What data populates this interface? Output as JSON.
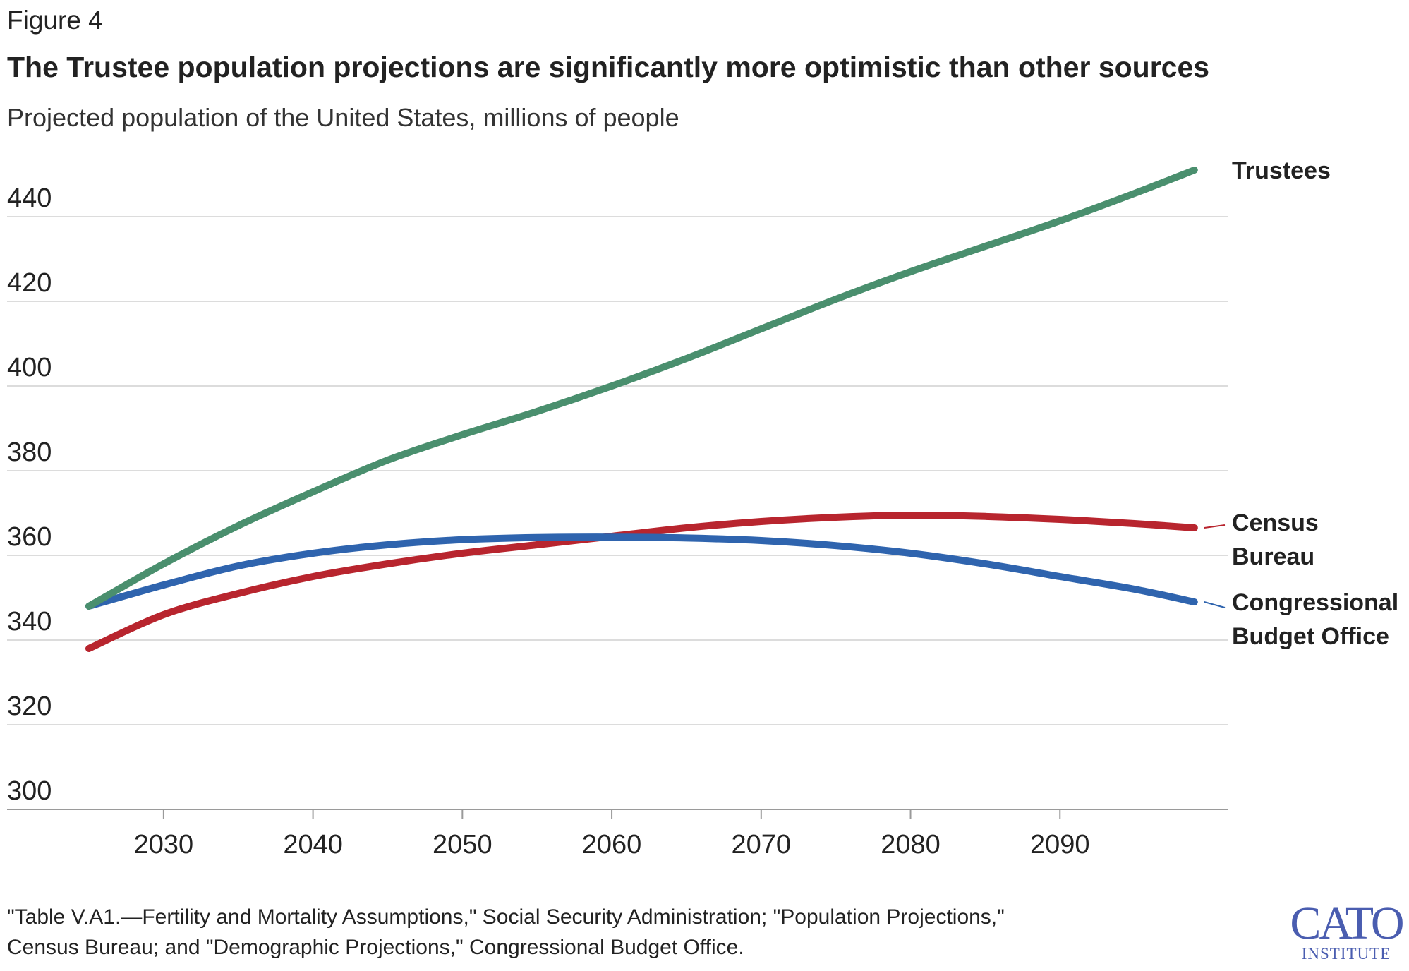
{
  "header": {
    "figure_label": "Figure 4",
    "title": "The Trustee population projections are significantly more optimistic than other sources",
    "subtitle": "Projected population of the United States, millions of people"
  },
  "source": {
    "line1": "\"Table V.A1.—Fertility and Mortality Assumptions,\" Social Security Administration; \"Population Projections,\"",
    "line2": "Census Bureau; and \"Demographic Projections,\" Congressional Budget Office."
  },
  "logo": {
    "top": "CATO",
    "bottom": "INSTITUTE"
  },
  "chart_data": {
    "type": "line",
    "title": "The Trustee population projections are significantly more optimistic than other sources",
    "subtitle": "Projected population of the United States, millions of people",
    "xlabel": "",
    "ylabel": "",
    "xlim": [
      2025,
      2100
    ],
    "ylim": [
      300,
      440
    ],
    "x_ticks": [
      2030,
      2040,
      2050,
      2060,
      2070,
      2080,
      2090
    ],
    "y_ticks": [
      300,
      320,
      340,
      360,
      380,
      400,
      420,
      440
    ],
    "grid": true,
    "legend": "direct labels at right end of lines",
    "series": [
      {
        "name": "Trustees",
        "color": "#4a8f6e",
        "label_lines": [
          "Trustees"
        ],
        "x": [
          2025,
          2030,
          2035,
          2040,
          2045,
          2050,
          2055,
          2060,
          2065,
          2070,
          2075,
          2080,
          2085,
          2090,
          2095,
          2099
        ],
        "y": [
          348,
          358,
          367,
          375,
          382.5,
          388.5,
          394,
          400,
          406.5,
          413.5,
          420.5,
          427,
          433,
          439,
          445.5,
          451
        ]
      },
      {
        "name": "Census Bureau",
        "color": "#b8252e",
        "label_lines": [
          "Census",
          "Bureau"
        ],
        "x": [
          2025,
          2030,
          2035,
          2040,
          2045,
          2050,
          2055,
          2060,
          2065,
          2070,
          2075,
          2080,
          2085,
          2090,
          2095,
          2099
        ],
        "y": [
          338,
          346,
          351,
          355,
          358,
          360.5,
          362.5,
          364.5,
          366.5,
          368,
          369,
          369.5,
          369.2,
          368.5,
          367.5,
          366.5
        ]
      },
      {
        "name": "Congressional Budget Office",
        "color": "#2f64ae",
        "label_lines": [
          "Congressional",
          "Budget Office"
        ],
        "x": [
          2025,
          2030,
          2035,
          2040,
          2045,
          2050,
          2055,
          2060,
          2065,
          2070,
          2075,
          2080,
          2085,
          2090,
          2095,
          2099
        ],
        "y": [
          348,
          353,
          357.5,
          360.5,
          362.5,
          363.7,
          364.2,
          364.3,
          364.1,
          363.5,
          362.3,
          360.5,
          358,
          355,
          352,
          349
        ]
      }
    ]
  }
}
